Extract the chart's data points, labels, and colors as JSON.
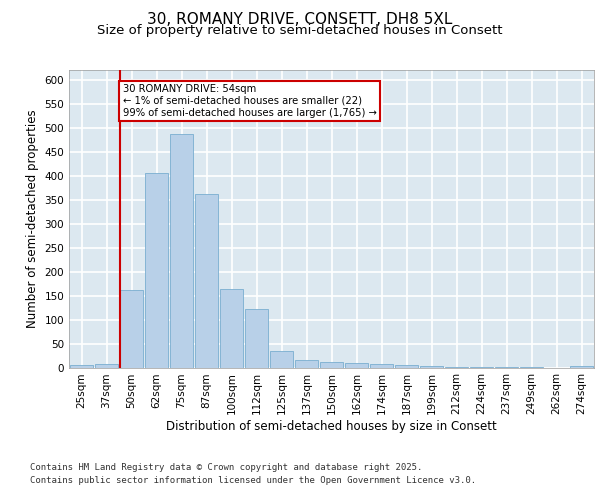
{
  "title": "30, ROMANY DRIVE, CONSETT, DH8 5XL",
  "subtitle": "Size of property relative to semi-detached houses in Consett",
  "xlabel": "Distribution of semi-detached houses by size in Consett",
  "ylabel": "Number of semi-detached properties",
  "categories": [
    "25sqm",
    "37sqm",
    "50sqm",
    "62sqm",
    "75sqm",
    "87sqm",
    "100sqm",
    "112sqm",
    "125sqm",
    "137sqm",
    "150sqm",
    "162sqm",
    "174sqm",
    "187sqm",
    "199sqm",
    "212sqm",
    "224sqm",
    "237sqm",
    "249sqm",
    "262sqm",
    "274sqm"
  ],
  "values": [
    5,
    8,
    162,
    405,
    487,
    362,
    163,
    122,
    35,
    15,
    12,
    10,
    8,
    5,
    4,
    2,
    2,
    1,
    1,
    0,
    3
  ],
  "bar_color": "#b8d0e8",
  "bar_edge_color": "#7aaed0",
  "bg_color": "#dce8f0",
  "grid_color": "#ffffff",
  "annotation_box_text": "30 ROMANY DRIVE: 54sqm\n← 1% of semi-detached houses are smaller (22)\n99% of semi-detached houses are larger (1,765) →",
  "annotation_box_color": "#cc0000",
  "vline_color": "#cc0000",
  "vline_x_index": 2,
  "ylim": [
    0,
    620
  ],
  "yticks": [
    0,
    50,
    100,
    150,
    200,
    250,
    300,
    350,
    400,
    450,
    500,
    550,
    600
  ],
  "footer_line1": "Contains HM Land Registry data © Crown copyright and database right 2025.",
  "footer_line2": "Contains public sector information licensed under the Open Government Licence v3.0.",
  "title_fontsize": 11,
  "subtitle_fontsize": 9.5,
  "tick_fontsize": 7.5,
  "label_fontsize": 8.5,
  "footer_fontsize": 6.5
}
